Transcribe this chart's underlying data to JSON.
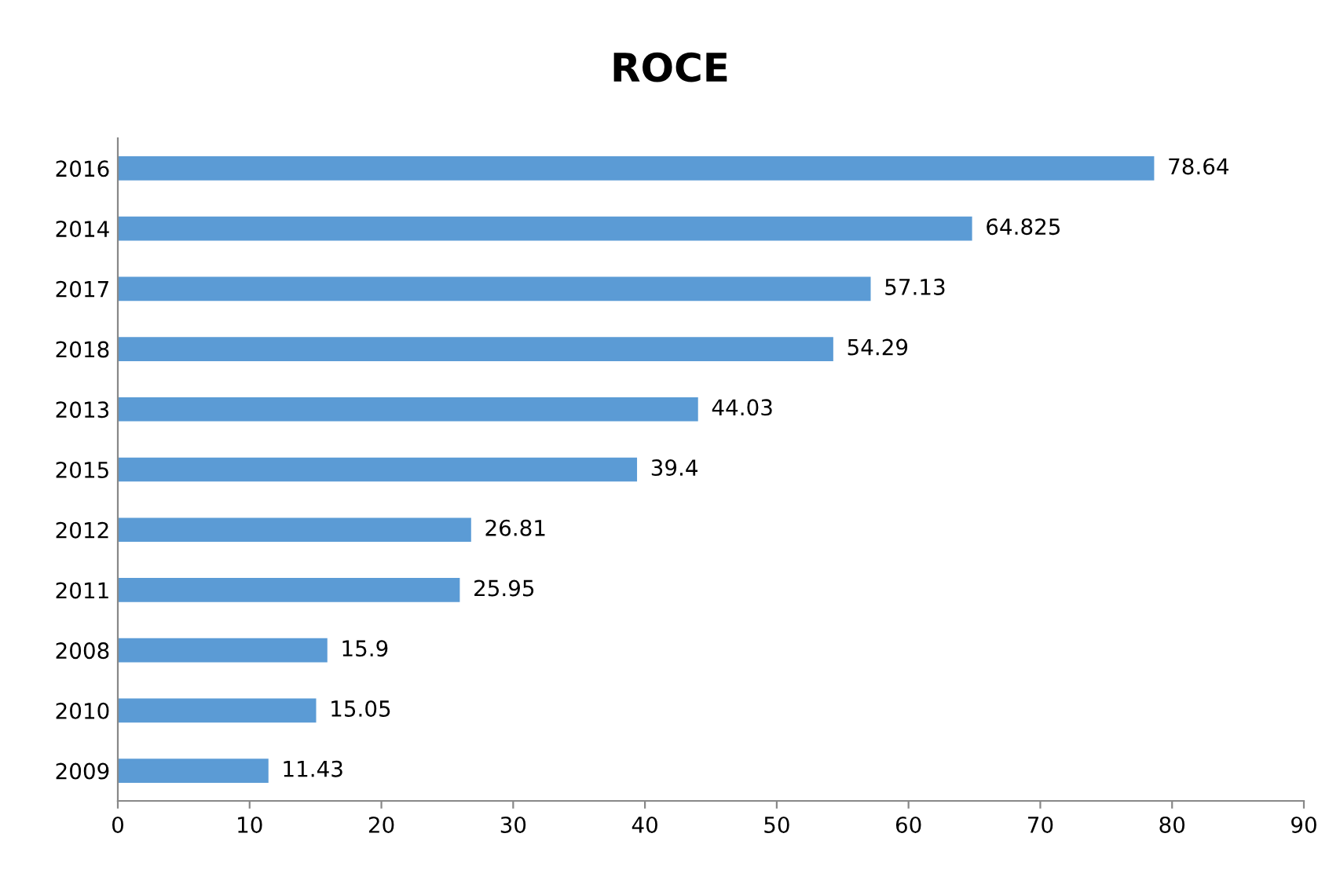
{
  "chart_data": {
    "type": "bar",
    "orientation": "horizontal",
    "title": "ROCE",
    "categories": [
      "2016",
      "2014",
      "2017",
      "2018",
      "2013",
      "2015",
      "2012",
      "2011",
      "2008",
      "2010",
      "2009"
    ],
    "values": [
      78.64,
      64.825,
      57.13,
      54.29,
      44.03,
      39.4,
      26.81,
      25.95,
      15.9,
      15.05,
      11.43
    ],
    "color": "#5b9bd5",
    "xlim": [
      0,
      90
    ],
    "xticks": [
      0,
      10,
      20,
      30,
      40,
      50,
      60,
      70,
      80,
      90
    ],
    "data_labels": true,
    "grid": false,
    "legend": false
  }
}
